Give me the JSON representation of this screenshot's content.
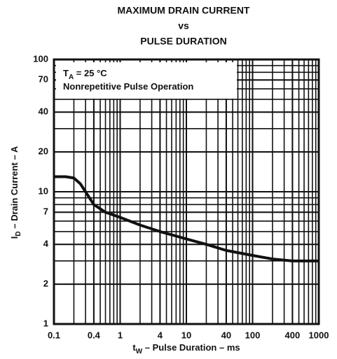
{
  "chart_data": {
    "type": "line",
    "title": [
      "MAXIMUM DRAIN CURRENT",
      "vs",
      "PULSE DURATION"
    ],
    "annotation": {
      "lines": [
        {
          "main": "T",
          "sub": "A",
          "rest": " = 25 °C"
        },
        {
          "main": "Nonrepetitive Pulse Operation"
        }
      ]
    },
    "x_label": {
      "main": "t",
      "sub": "W",
      "rest": " – Pulse Duration – ms"
    },
    "y_label": {
      "main": "I",
      "sub": "D",
      "rest": " – Drain Current – A"
    },
    "x": [
      0.1,
      0.15,
      0.2,
      0.25,
      0.3,
      0.4,
      0.6,
      1,
      2,
      4,
      10,
      20,
      40,
      100,
      200,
      400,
      1000
    ],
    "series": [
      {
        "color": "#111111",
        "values": [
          13,
          13,
          12.7,
          11.5,
          10,
          8,
          7,
          6.4,
          5.6,
          5,
          4.4,
          4,
          3.6,
          3.3,
          3.1,
          3.0,
          3.0
        ]
      }
    ],
    "xlim": [
      0.1,
      1000
    ],
    "ylim": [
      1,
      100
    ],
    "xticks": [
      0.1,
      0.4,
      1,
      4,
      10,
      40,
      100,
      400,
      1000
    ],
    "yticks": [
      1,
      2,
      4,
      7,
      10,
      20,
      40,
      70,
      100
    ],
    "xscale": "log",
    "yscale": "log",
    "grid": true
  }
}
